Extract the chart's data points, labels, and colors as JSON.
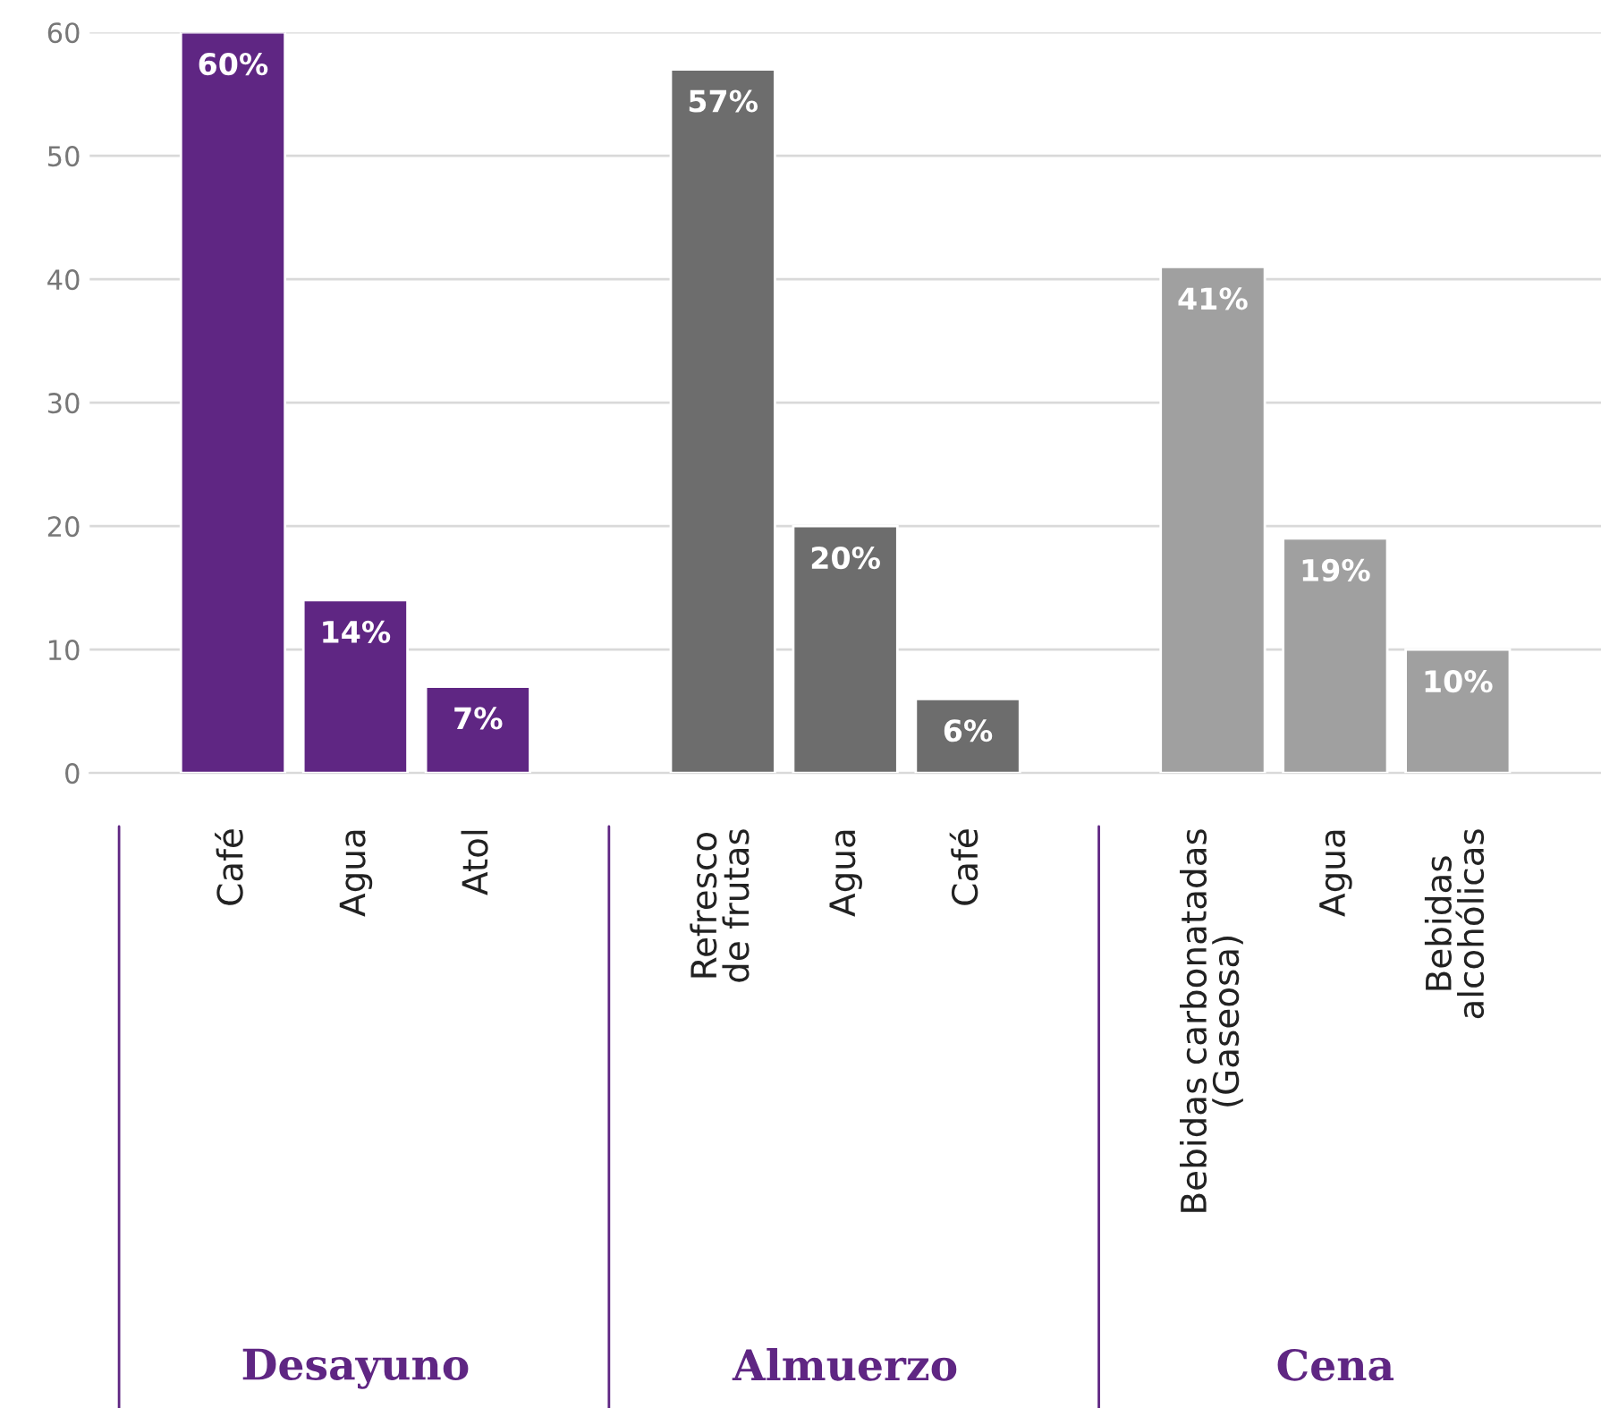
{
  "chart_data": {
    "type": "bar",
    "categories": [
      "Café",
      "Agua",
      "Atol",
      null,
      "Refresco\nde frutas",
      "Agua",
      "Café",
      null,
      "Bebidas carbonatadas\n(Gaseosa)",
      "Agua",
      "Bebidas\nalcohólicas"
    ],
    "values": [
      60,
      14,
      7,
      null,
      57,
      20,
      6,
      null,
      41,
      19,
      10
    ],
    "colors": [
      "#5f2683",
      "#5f2683",
      "#5f2683",
      null,
      "#6d6d6d",
      "#6d6d6d",
      "#6d6d6d",
      null,
      "#a0a0a0",
      "#a0a0a0",
      "#a0a0a0"
    ],
    "value_labels": [
      "60%",
      "14%",
      "7%",
      null,
      "57%",
      "20%",
      "6%",
      null,
      "41%",
      "19%",
      "10%"
    ],
    "annotations": [
      "Desayuno",
      "Almuerzo",
      "Cena"
    ],
    "ylim": [
      0,
      60
    ],
    "yticks": [
      0,
      10,
      20,
      30,
      40,
      50,
      60
    ],
    "grid": "y"
  }
}
